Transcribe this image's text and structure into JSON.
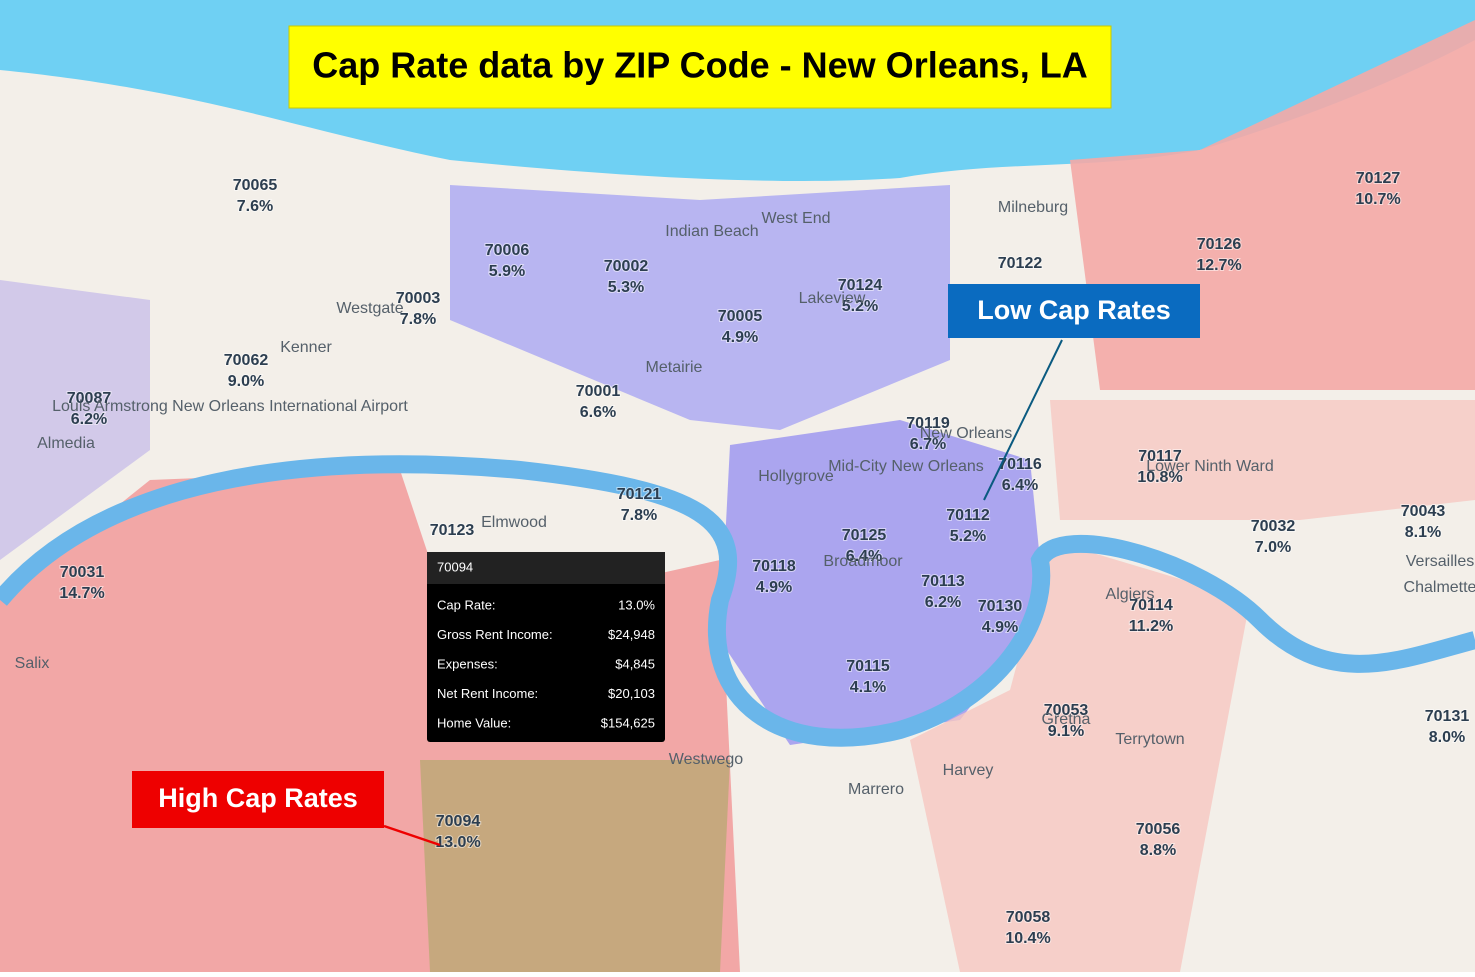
{
  "title": "Cap  Rate data by ZIP Code - New Orleans, LA",
  "zips": [
    {
      "zip": "70065",
      "rate": "7.6%"
    },
    {
      "zip": "70006",
      "rate": "5.9%"
    },
    {
      "zip": "70002",
      "rate": "5.3%"
    },
    {
      "zip": "70003",
      "rate": "7.8%"
    },
    {
      "zip": "70005",
      "rate": "4.9%"
    },
    {
      "zip": "70124",
      "rate": "5.2%"
    },
    {
      "zip": "70122"
    },
    {
      "zip": "70062",
      "rate": "9.0%"
    },
    {
      "zip": "70087",
      "rate": "6.2%"
    },
    {
      "zip": "70001",
      "rate": "6.6%"
    },
    {
      "zip": "70119",
      "rate": "6.7%"
    },
    {
      "zip": "70116",
      "rate": "6.4%"
    },
    {
      "zip": "70117",
      "rate": "10.8%"
    },
    {
      "zip": "70121",
      "rate": "7.8%"
    },
    {
      "zip": "70112",
      "rate": "5.2%"
    },
    {
      "zip": "70125",
      "rate": "6.4%"
    },
    {
      "zip": "70118",
      "rate": "4.9%"
    },
    {
      "zip": "70113",
      "rate": "6.2%"
    },
    {
      "zip": "70130",
      "rate": "4.9%"
    },
    {
      "zip": "70115",
      "rate": "4.1%"
    },
    {
      "zip": "70123"
    },
    {
      "zip": "70031",
      "rate": "14.7%"
    },
    {
      "zip": "70094",
      "rate": "13.0%"
    },
    {
      "zip": "70126",
      "rate": "12.7%"
    },
    {
      "zip": "70127",
      "rate": "10.7%"
    },
    {
      "zip": "70043",
      "rate": "8.1%"
    },
    {
      "zip": "70032",
      "rate": "7.0%"
    },
    {
      "zip": "70114",
      "rate": "11.2%"
    },
    {
      "zip": "70053",
      "rate": "9.1%"
    },
    {
      "zip": "70056",
      "rate": "8.8%"
    },
    {
      "zip": "70058",
      "rate": "10.4%"
    },
    {
      "zip": "70131",
      "rate": "8.0%"
    }
  ],
  "places": [
    "Kenner",
    "Metairie",
    "New Orleans",
    "Mid-City New Orleans",
    "Algiers",
    "Westwego",
    "Marrero",
    "Harvey",
    "Terrytown",
    "Elmwood",
    "Hollygrove",
    "Broadmoor",
    "Lower Ninth Ward",
    "Chalmette",
    "Versailles",
    "Westgate",
    "Lakeview",
    "Gretna",
    "Almedia",
    "Salix",
    "Milneburg",
    "Indian Beach",
    "West End",
    "Louis Armstrong New Orleans International Airport"
  ],
  "tooltip": {
    "zip": "70094",
    "rows": [
      {
        "label": "Cap Rate:",
        "value": "13.0%"
      },
      {
        "label": "Gross Rent Income:",
        "value": "$24,948"
      },
      {
        "label": "Expenses:",
        "value": "$4,845"
      },
      {
        "label": "Net Rent Income:",
        "value": "$20,103"
      },
      {
        "label": "Home Value:",
        "value": "$154,625"
      }
    ]
  },
  "callouts": {
    "low": "Low Cap Rates",
    "high": "High Cap Rates"
  }
}
